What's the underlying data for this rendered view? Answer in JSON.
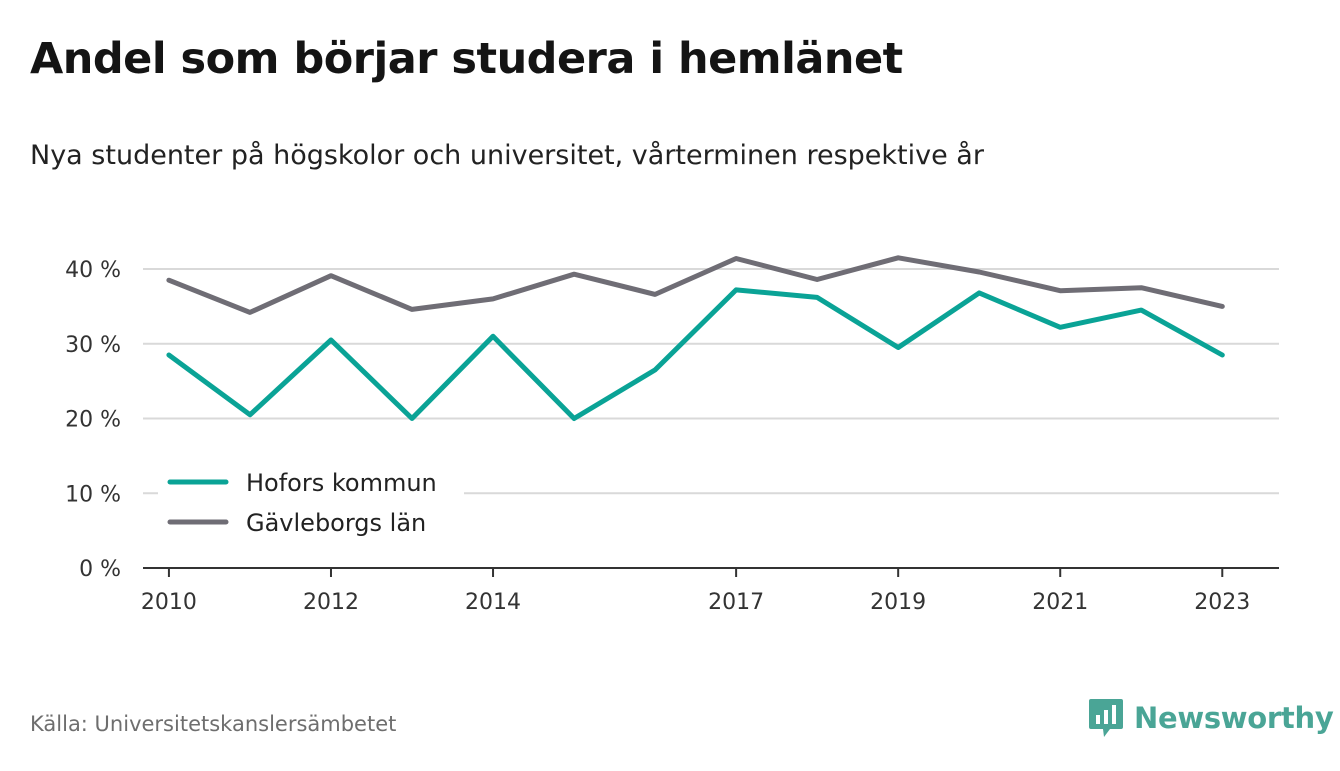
{
  "title": "Andel som börjar studera i hemlänet",
  "subtitle": "Nya studenter på högskolor och universitet, vårterminen respektive år",
  "source": "Källa: Universitetskanslersämbetet",
  "brand": "Newsworthy",
  "colors": {
    "hofors": "#0aa396",
    "gavleborg": "#6f6d75",
    "grid": "#d9d9d9",
    "axis": "#333333",
    "brand": "#4aa596"
  },
  "chart_data": {
    "type": "line",
    "title": "Andel som börjar studera i hemlänet",
    "subtitle": "Nya studenter på högskolor och universitet, vårterminen respektive år",
    "x": [
      2010,
      2011,
      2012,
      2013,
      2014,
      2015,
      2016,
      2017,
      2018,
      2019,
      2020,
      2021,
      2022,
      2023
    ],
    "x_tick_labels": [
      "2010",
      "2012",
      "2014",
      "2017",
      "2019",
      "2021",
      "2023"
    ],
    "y_tick_labels": [
      "0 %",
      "10 %",
      "20 %",
      "30 %",
      "40 %"
    ],
    "ylim": [
      0,
      40
    ],
    "grid": true,
    "legend": "bottom-left",
    "series": [
      {
        "name": "Hofors kommun",
        "color": "#0aa396",
        "values": [
          28.5,
          20.5,
          30.5,
          20.0,
          31.0,
          20.0,
          26.5,
          37.2,
          36.2,
          29.5,
          36.8,
          32.2,
          34.5,
          28.5
        ]
      },
      {
        "name": "Gävleborgs län",
        "color": "#6f6d75",
        "values": [
          38.5,
          34.2,
          39.1,
          34.6,
          36.0,
          39.3,
          36.6,
          41.4,
          38.6,
          41.5,
          39.6,
          37.1,
          37.5,
          35.0
        ]
      }
    ]
  }
}
